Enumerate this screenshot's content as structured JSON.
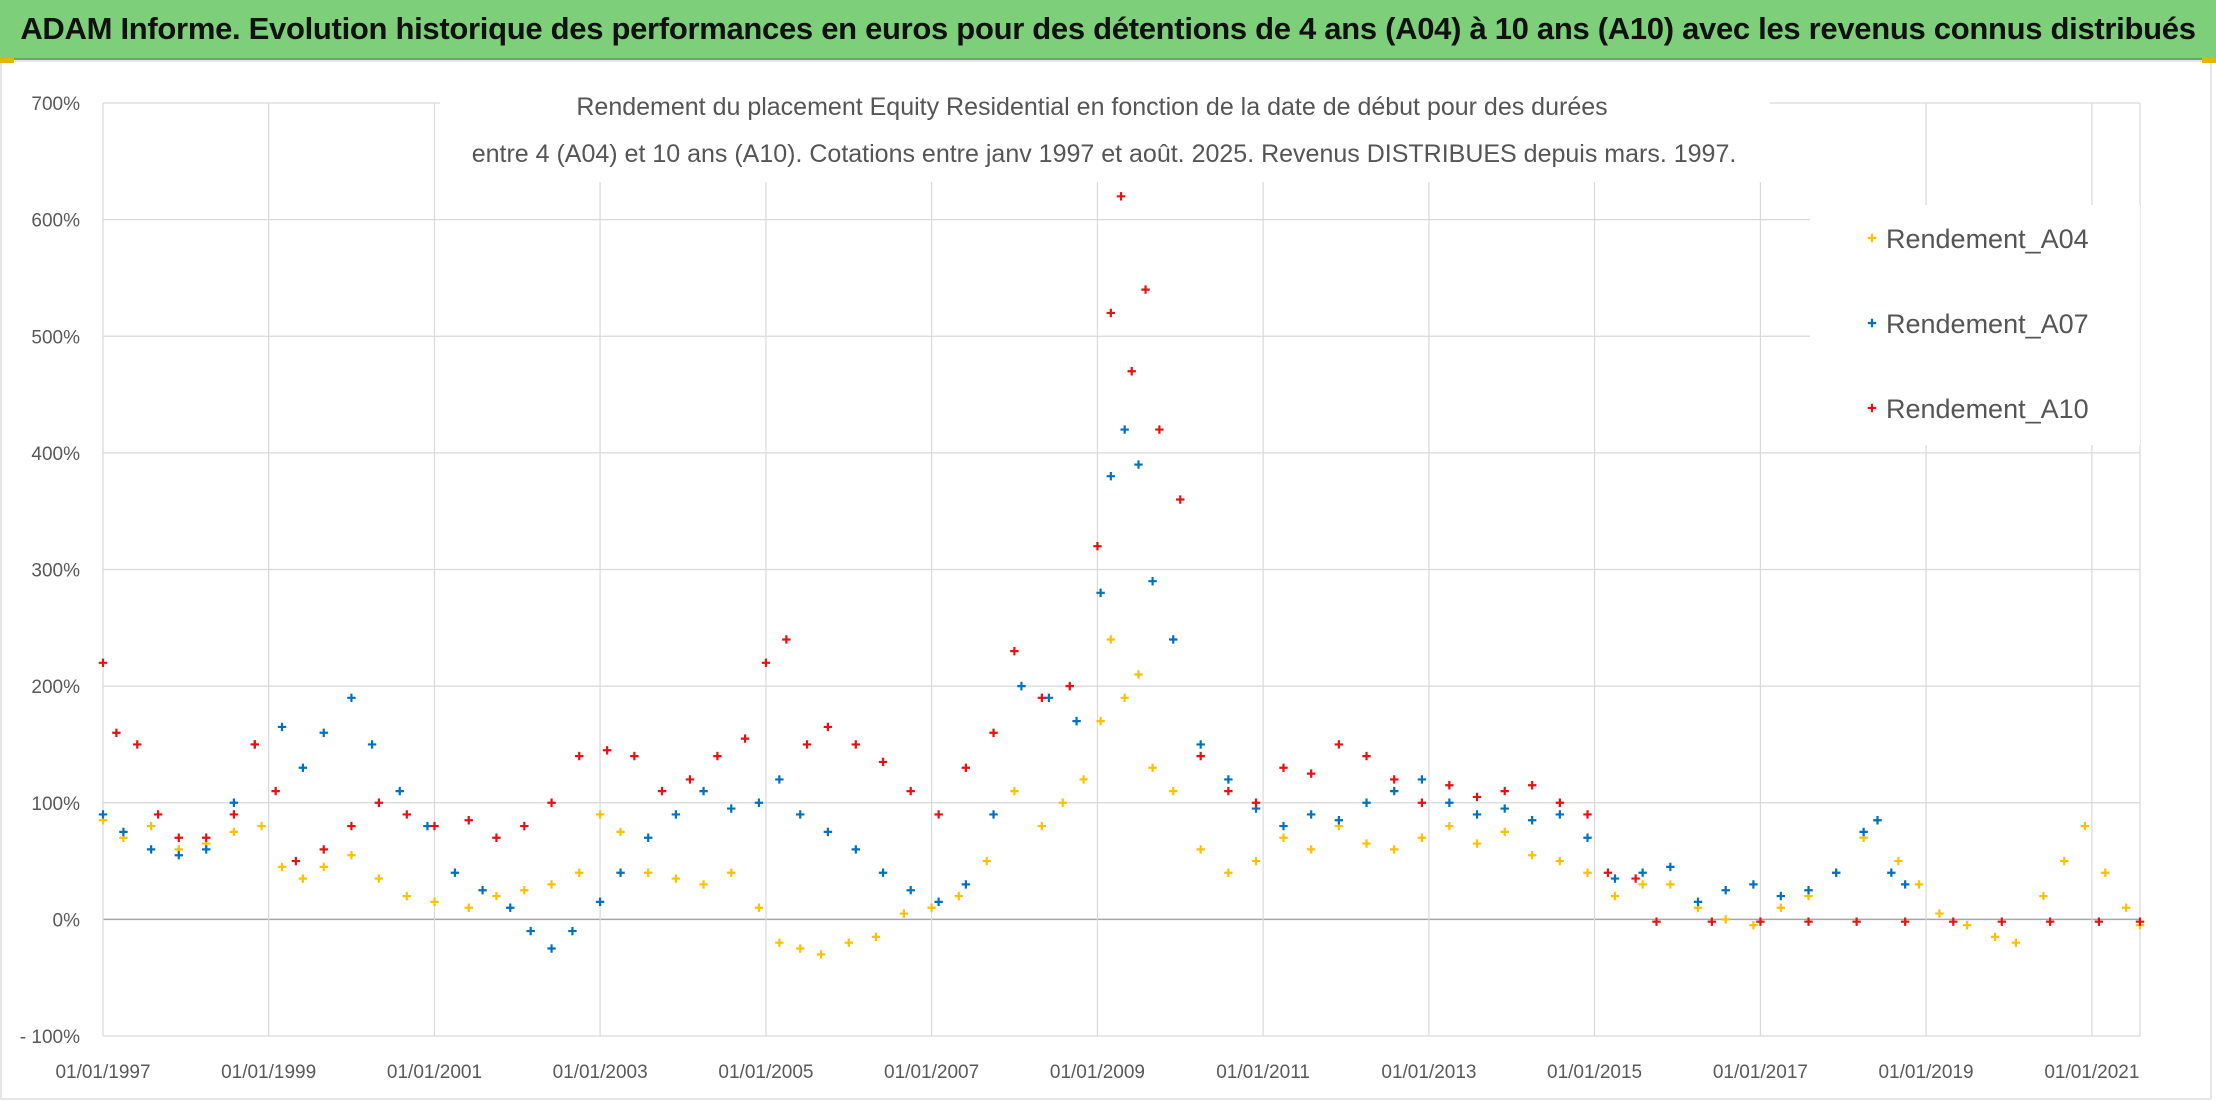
{
  "banner": {
    "title": "ADAM Informe. Evolution historique des performances en euros pour des détentions de 4 ans (A04) à 10 ans (A10) avec les revenus connus distribués"
  },
  "colors": {
    "banner_bg": "#7ecf7a",
    "A04": "#ffc000",
    "A07": "#0070c0",
    "A10": "#e81010",
    "grid": "#d9d9d9"
  },
  "chart_data": {
    "type": "scatter",
    "title_lines": [
      "Rendement du placement Equity Residential en fonction de la date de début pour des durées",
      "entre 4 (A04) et 10 ans (A10). Cotations entre janv 1997 et août. 2025. Revenus DISTRIBUES depuis mars. 1997."
    ],
    "xlabel": "",
    "ylabel": "",
    "x_tick_labels": [
      "01/01/1997",
      "01/01/1999",
      "01/01/2001",
      "01/01/2003",
      "01/01/2005",
      "01/01/2007",
      "01/01/2009",
      "01/01/2011",
      "01/01/2013",
      "01/01/2015",
      "01/01/2017",
      "01/01/2019",
      "01/01/2021"
    ],
    "xlim": [
      "1997-01-01",
      "2021-08-01"
    ],
    "y_tick_labels": [
      "- 100%",
      "0%",
      "100%",
      "200%",
      "300%",
      "400%",
      "500%",
      "600%",
      "700%"
    ],
    "ylim": [
      -100,
      700
    ],
    "marker": "+",
    "grid": true,
    "legend_position": "top-right",
    "series": [
      {
        "name": "Rendement_A04",
        "color": "#ffc000",
        "points": [
          [
            "1997-01-01",
            85
          ],
          [
            "1997-04-01",
            70
          ],
          [
            "1997-08-01",
            80
          ],
          [
            "1997-12-01",
            60
          ],
          [
            "1998-04-01",
            65
          ],
          [
            "1998-08-01",
            75
          ],
          [
            "1998-12-01",
            80
          ],
          [
            "1999-03-01",
            45
          ],
          [
            "1999-06-01",
            35
          ],
          [
            "1999-09-01",
            45
          ],
          [
            "2000-01-01",
            55
          ],
          [
            "2000-05-01",
            35
          ],
          [
            "2000-09-01",
            20
          ],
          [
            "2001-01-01",
            15
          ],
          [
            "2001-06-01",
            10
          ],
          [
            "2001-10-01",
            20
          ],
          [
            "2002-02-01",
            25
          ],
          [
            "2002-06-01",
            30
          ],
          [
            "2002-10-01",
            40
          ],
          [
            "2003-01-01",
            90
          ],
          [
            "2003-04-01",
            75
          ],
          [
            "2003-08-01",
            40
          ],
          [
            "2003-12-01",
            35
          ],
          [
            "2004-04-01",
            30
          ],
          [
            "2004-08-01",
            40
          ],
          [
            "2004-12-01",
            10
          ],
          [
            "2005-03-01",
            -20
          ],
          [
            "2005-06-01",
            -25
          ],
          [
            "2005-09-01",
            -30
          ],
          [
            "2006-01-01",
            -20
          ],
          [
            "2006-05-01",
            -15
          ],
          [
            "2006-09-01",
            5
          ],
          [
            "2007-01-01",
            10
          ],
          [
            "2007-05-01",
            20
          ],
          [
            "2007-09-01",
            50
          ],
          [
            "2008-01-01",
            110
          ],
          [
            "2008-05-01",
            80
          ],
          [
            "2008-08-01",
            100
          ],
          [
            "2008-11-01",
            120
          ],
          [
            "2009-01-15",
            170
          ],
          [
            "2009-03-01",
            240
          ],
          [
            "2009-05-01",
            190
          ],
          [
            "2009-07-01",
            210
          ],
          [
            "2009-09-01",
            130
          ],
          [
            "2009-12-01",
            110
          ],
          [
            "2010-04-01",
            60
          ],
          [
            "2010-08-01",
            40
          ],
          [
            "2010-12-01",
            50
          ],
          [
            "2011-04-01",
            70
          ],
          [
            "2011-08-01",
            60
          ],
          [
            "2011-12-01",
            80
          ],
          [
            "2012-04-01",
            65
          ],
          [
            "2012-08-01",
            60
          ],
          [
            "2012-12-01",
            70
          ],
          [
            "2013-04-01",
            80
          ],
          [
            "2013-08-01",
            65
          ],
          [
            "2013-12-01",
            75
          ],
          [
            "2014-04-01",
            55
          ],
          [
            "2014-08-01",
            50
          ],
          [
            "2014-12-01",
            40
          ],
          [
            "2015-04-01",
            20
          ],
          [
            "2015-08-01",
            30
          ],
          [
            "2015-12-01",
            30
          ],
          [
            "2016-04-01",
            10
          ],
          [
            "2016-08-01",
            0
          ],
          [
            "2016-12-01",
            -5
          ],
          [
            "2017-04-01",
            10
          ],
          [
            "2017-08-01",
            20
          ],
          [
            "2017-12-01",
            40
          ],
          [
            "2018-04-01",
            70
          ],
          [
            "2018-06-01",
            85
          ],
          [
            "2018-09-01",
            50
          ],
          [
            "2018-12-01",
            30
          ],
          [
            "2019-03-01",
            5
          ],
          [
            "2019-07-01",
            -5
          ],
          [
            "2019-11-01",
            -15
          ],
          [
            "2020-02-01",
            -20
          ],
          [
            "2020-06-01",
            20
          ],
          [
            "2020-09-01",
            50
          ],
          [
            "2020-12-01",
            80
          ],
          [
            "2021-03-01",
            40
          ],
          [
            "2021-06-01",
            10
          ],
          [
            "2021-08-01",
            -5
          ]
        ]
      },
      {
        "name": "Rendement_A07",
        "color": "#0070c0",
        "points": [
          [
            "1997-01-01",
            90
          ],
          [
            "1997-04-01",
            75
          ],
          [
            "1997-08-01",
            60
          ],
          [
            "1997-12-01",
            55
          ],
          [
            "1998-04-01",
            60
          ],
          [
            "1998-08-01",
            100
          ],
          [
            "1998-11-01",
            150
          ],
          [
            "1999-03-01",
            165
          ],
          [
            "1999-06-01",
            130
          ],
          [
            "1999-09-01",
            160
          ],
          [
            "2000-01-01",
            190
          ],
          [
            "2000-04-01",
            150
          ],
          [
            "2000-08-01",
            110
          ],
          [
            "2000-12-01",
            80
          ],
          [
            "2001-04-01",
            40
          ],
          [
            "2001-08-01",
            25
          ],
          [
            "2001-12-01",
            10
          ],
          [
            "2002-03-01",
            -10
          ],
          [
            "2002-06-01",
            -25
          ],
          [
            "2002-09-01",
            -10
          ],
          [
            "2003-01-01",
            15
          ],
          [
            "2003-04-01",
            40
          ],
          [
            "2003-08-01",
            70
          ],
          [
            "2003-12-01",
            90
          ],
          [
            "2004-04-01",
            110
          ],
          [
            "2004-08-01",
            95
          ],
          [
            "2004-12-01",
            100
          ],
          [
            "2005-03-01",
            120
          ],
          [
            "2005-06-01",
            90
          ],
          [
            "2005-10-01",
            75
          ],
          [
            "2006-02-01",
            60
          ],
          [
            "2006-06-01",
            40
          ],
          [
            "2006-10-01",
            25
          ],
          [
            "2007-02-01",
            15
          ],
          [
            "2007-06-01",
            30
          ],
          [
            "2007-10-01",
            90
          ],
          [
            "2008-02-01",
            200
          ],
          [
            "2008-06-01",
            190
          ],
          [
            "2008-10-01",
            170
          ],
          [
            "2009-01-15",
            280
          ],
          [
            "2009-03-01",
            380
          ],
          [
            "2009-05-01",
            420
          ],
          [
            "2009-07-01",
            390
          ],
          [
            "2009-09-01",
            290
          ],
          [
            "2009-12-01",
            240
          ],
          [
            "2010-04-01",
            150
          ],
          [
            "2010-08-01",
            120
          ],
          [
            "2010-12-01",
            95
          ],
          [
            "2011-04-01",
            80
          ],
          [
            "2011-08-01",
            90
          ],
          [
            "2011-12-01",
            85
          ],
          [
            "2012-04-01",
            100
          ],
          [
            "2012-08-01",
            110
          ],
          [
            "2012-12-01",
            120
          ],
          [
            "2013-04-01",
            100
          ],
          [
            "2013-08-01",
            90
          ],
          [
            "2013-12-01",
            95
          ],
          [
            "2014-04-01",
            85
          ],
          [
            "2014-08-01",
            90
          ],
          [
            "2014-12-01",
            70
          ],
          [
            "2015-04-01",
            35
          ],
          [
            "2015-08-01",
            40
          ],
          [
            "2015-12-01",
            45
          ],
          [
            "2016-04-01",
            15
          ],
          [
            "2016-08-01",
            25
          ],
          [
            "2016-12-01",
            30
          ],
          [
            "2017-04-01",
            20
          ],
          [
            "2017-08-01",
            25
          ],
          [
            "2017-12-01",
            40
          ],
          [
            "2018-04-01",
            75
          ],
          [
            "2018-06-01",
            85
          ],
          [
            "2018-08-01",
            40
          ],
          [
            "2018-10-01",
            30
          ]
        ]
      },
      {
        "name": "Rendement_A10",
        "color": "#e81010",
        "points": [
          [
            "1997-01-01",
            220
          ],
          [
            "1997-03-01",
            160
          ],
          [
            "1997-06-01",
            150
          ],
          [
            "1997-09-01",
            90
          ],
          [
            "1997-12-01",
            70
          ],
          [
            "1998-04-01",
            70
          ],
          [
            "1998-08-01",
            90
          ],
          [
            "1998-11-01",
            150
          ],
          [
            "1999-02-01",
            110
          ],
          [
            "1999-05-01",
            50
          ],
          [
            "1999-09-01",
            60
          ],
          [
            "2000-01-01",
            80
          ],
          [
            "2000-05-01",
            100
          ],
          [
            "2000-09-01",
            90
          ],
          [
            "2001-01-01",
            80
          ],
          [
            "2001-06-01",
            85
          ],
          [
            "2001-10-01",
            70
          ],
          [
            "2002-02-01",
            80
          ],
          [
            "2002-06-01",
            100
          ],
          [
            "2002-10-01",
            140
          ],
          [
            "2003-02-01",
            145
          ],
          [
            "2003-06-01",
            140
          ],
          [
            "2003-10-01",
            110
          ],
          [
            "2004-02-01",
            120
          ],
          [
            "2004-06-01",
            140
          ],
          [
            "2004-10-01",
            155
          ],
          [
            "2005-01-01",
            220
          ],
          [
            "2005-04-01",
            240
          ],
          [
            "2005-07-01",
            150
          ],
          [
            "2005-10-01",
            165
          ],
          [
            "2006-02-01",
            150
          ],
          [
            "2006-06-01",
            135
          ],
          [
            "2006-10-01",
            110
          ],
          [
            "2007-02-01",
            90
          ],
          [
            "2007-06-01",
            130
          ],
          [
            "2007-10-01",
            160
          ],
          [
            "2008-01-01",
            230
          ],
          [
            "2008-05-01",
            190
          ],
          [
            "2008-09-01",
            200
          ],
          [
            "2009-01-01",
            320
          ],
          [
            "2009-03-01",
            520
          ],
          [
            "2009-04-15",
            620
          ],
          [
            "2009-06-01",
            470
          ],
          [
            "2009-08-01",
            540
          ],
          [
            "2009-10-01",
            420
          ],
          [
            "2010-01-01",
            360
          ],
          [
            "2010-04-01",
            140
          ],
          [
            "2010-08-01",
            110
          ],
          [
            "2010-12-01",
            100
          ],
          [
            "2011-04-01",
            130
          ],
          [
            "2011-08-01",
            125
          ],
          [
            "2011-12-01",
            150
          ],
          [
            "2012-04-01",
            140
          ],
          [
            "2012-08-01",
            120
          ],
          [
            "2012-12-01",
            100
          ],
          [
            "2013-04-01",
            115
          ],
          [
            "2013-08-01",
            105
          ],
          [
            "2013-12-01",
            110
          ],
          [
            "2014-04-01",
            115
          ],
          [
            "2014-08-01",
            100
          ],
          [
            "2014-12-01",
            90
          ],
          [
            "2015-03-01",
            40
          ],
          [
            "2015-07-01",
            35
          ],
          [
            "2015-10-01",
            -2
          ],
          [
            "2016-06-01",
            -2
          ],
          [
            "2017-01-01",
            -2
          ],
          [
            "2017-08-01",
            -2
          ],
          [
            "2018-03-01",
            -2
          ],
          [
            "2018-10-01",
            -2
          ],
          [
            "2019-05-01",
            -2
          ],
          [
            "2019-12-01",
            -2
          ],
          [
            "2020-07-01",
            -2
          ],
          [
            "2021-02-01",
            -2
          ],
          [
            "2021-08-01",
            -2
          ]
        ]
      }
    ]
  }
}
